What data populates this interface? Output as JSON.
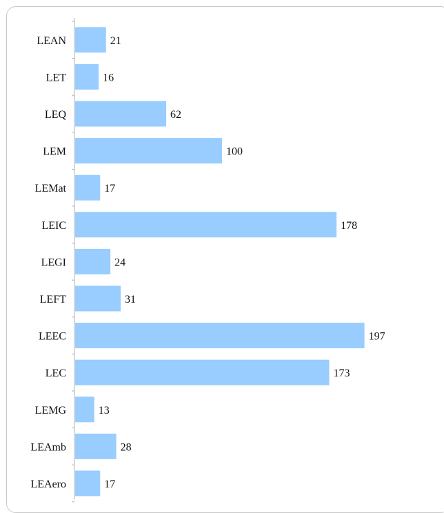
{
  "chart_data": {
    "type": "bar",
    "orientation": "horizontal",
    "categories": [
      "LEAN",
      "LET",
      "LEQ",
      "LEM",
      "LEMat",
      "LEIC",
      "LEGI",
      "LEFT",
      "LEEC",
      "LEC",
      "LEMG",
      "LEAmb",
      "LEAero"
    ],
    "values": [
      21,
      16,
      62,
      100,
      17,
      178,
      24,
      31,
      197,
      173,
      13,
      28,
      17
    ],
    "title": "",
    "xlabel": "",
    "ylabel": "",
    "grid": false,
    "legend": "none",
    "data_labels": true,
    "bar_color": "#99ccff"
  }
}
